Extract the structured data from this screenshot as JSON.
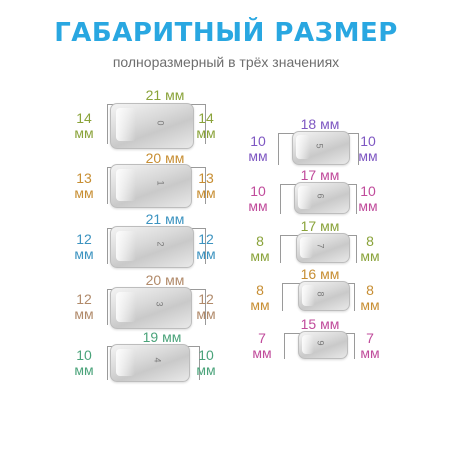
{
  "header": {
    "title": "ГАБАРИТНЫЙ РАЗМЕР",
    "subtitle": "полноразмерный в трёх значениях"
  },
  "left_tips": [
    {
      "number": "0",
      "width": "21 мм",
      "height": "14\nмм",
      "color": "#8aa33a"
    },
    {
      "number": "1",
      "width": "20 мм",
      "height": "13\nмм",
      "color": "#c78e33"
    },
    {
      "number": "2",
      "width": "21 мм",
      "height": "12\nмм",
      "color": "#3c93c0"
    },
    {
      "number": "3",
      "width": "20 мм",
      "height": "12\nмм",
      "color": "#b18a6a"
    },
    {
      "number": "4",
      "width": "19 мм",
      "height": "10\nмм",
      "color": "#4aa37a"
    }
  ],
  "right_tips": [
    {
      "number": "5",
      "width": "18 мм",
      "height": "10\nмм",
      "color": "#7e57c2"
    },
    {
      "number": "6",
      "width": "17 мм",
      "height": "10\nмм",
      "color": "#c04b9b"
    },
    {
      "number": "7",
      "width": "17 мм",
      "height": "8\nмм",
      "color": "#8aa33a"
    },
    {
      "number": "8",
      "width": "16 мм",
      "height": "8\nмм",
      "color": "#c78e33"
    },
    {
      "number": "9",
      "width": "15 мм",
      "height": "7\nмм",
      "color": "#c04b9b"
    }
  ]
}
